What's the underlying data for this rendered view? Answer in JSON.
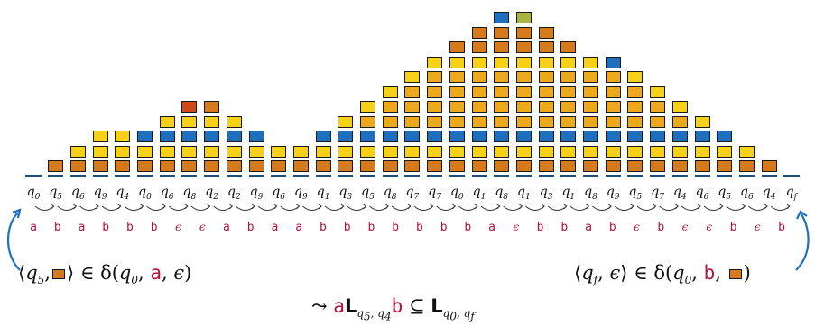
{
  "colors": {
    "Y": "#f7d117",
    "G": "#eca91c",
    "O": "#d67b1c",
    "B": "#1e6fbd",
    "R": "#cc4a1c",
    "L": "#a9b540",
    "axis": "#1f4e79",
    "text_red": "#b5123e"
  },
  "columns": [
    [],
    [
      "O"
    ],
    [
      "O",
      "Y"
    ],
    [
      "O",
      "Y",
      "Y"
    ],
    [
      "O",
      "Y",
      "Y"
    ],
    [
      "O",
      "Y",
      "B"
    ],
    [
      "O",
      "Y",
      "B",
      "Y"
    ],
    [
      "O",
      "Y",
      "B",
      "Y",
      "R"
    ],
    [
      "O",
      "Y",
      "B",
      "Y",
      "O"
    ],
    [
      "O",
      "Y",
      "B",
      "Y"
    ],
    [
      "O",
      "Y",
      "B"
    ],
    [
      "O",
      "Y"
    ],
    [
      "O",
      "Y"
    ],
    [
      "O",
      "Y",
      "B"
    ],
    [
      "O",
      "Y",
      "B",
      "Y"
    ],
    [
      "O",
      "Y",
      "B",
      "G",
      "Y"
    ],
    [
      "O",
      "Y",
      "B",
      "G",
      "G",
      "Y"
    ],
    [
      "O",
      "Y",
      "B",
      "G",
      "G",
      "G",
      "Y"
    ],
    [
      "O",
      "Y",
      "B",
      "G",
      "G",
      "G",
      "G",
      "Y"
    ],
    [
      "O",
      "Y",
      "B",
      "G",
      "G",
      "G",
      "G",
      "Y",
      "O"
    ],
    [
      "O",
      "Y",
      "B",
      "G",
      "G",
      "G",
      "G",
      "Y",
      "O",
      "O"
    ],
    [
      "O",
      "Y",
      "B",
      "G",
      "G",
      "G",
      "G",
      "Y",
      "O",
      "O",
      "B"
    ],
    [
      "O",
      "Y",
      "B",
      "G",
      "G",
      "G",
      "G",
      "Y",
      "O",
      "O",
      "L"
    ],
    [
      "O",
      "Y",
      "B",
      "G",
      "G",
      "G",
      "G",
      "Y",
      "O",
      "O"
    ],
    [
      "O",
      "Y",
      "B",
      "G",
      "G",
      "G",
      "G",
      "Y",
      "O"
    ],
    [
      "O",
      "Y",
      "B",
      "G",
      "G",
      "G",
      "G",
      "Y"
    ],
    [
      "O",
      "Y",
      "B",
      "G",
      "G",
      "G",
      "G",
      "B"
    ],
    [
      "O",
      "Y",
      "B",
      "G",
      "G",
      "G",
      "Y"
    ],
    [
      "O",
      "Y",
      "B",
      "G",
      "G",
      "Y"
    ],
    [
      "O",
      "Y",
      "B",
      "G",
      "Y"
    ],
    [
      "O",
      "Y",
      "B",
      "Y"
    ],
    [
      "O",
      "Y",
      "B"
    ],
    [
      "O",
      "Y"
    ],
    [
      "O"
    ],
    []
  ],
  "states": [
    {
      "b": "q",
      "s": "0"
    },
    {
      "b": "q",
      "s": "5"
    },
    {
      "b": "q",
      "s": "6"
    },
    {
      "b": "q",
      "s": "9"
    },
    {
      "b": "q",
      "s": "4"
    },
    {
      "b": "q",
      "s": "0"
    },
    {
      "b": "q",
      "s": "6"
    },
    {
      "b": "q",
      "s": "8"
    },
    {
      "b": "q",
      "s": "2"
    },
    {
      "b": "q",
      "s": "2"
    },
    {
      "b": "q",
      "s": "9"
    },
    {
      "b": "q",
      "s": "6"
    },
    {
      "b": "q",
      "s": "9"
    },
    {
      "b": "q",
      "s": "1"
    },
    {
      "b": "q",
      "s": "3"
    },
    {
      "b": "q",
      "s": "5"
    },
    {
      "b": "q",
      "s": "8"
    },
    {
      "b": "q",
      "s": "7"
    },
    {
      "b": "q",
      "s": "7"
    },
    {
      "b": "q",
      "s": "0"
    },
    {
      "b": "q",
      "s": "1"
    },
    {
      "b": "q",
      "s": "8"
    },
    {
      "b": "q",
      "s": "1"
    },
    {
      "b": "q",
      "s": "3"
    },
    {
      "b": "q",
      "s": "1"
    },
    {
      "b": "q",
      "s": "8"
    },
    {
      "b": "q",
      "s": "9"
    },
    {
      "b": "q",
      "s": "5"
    },
    {
      "b": "q",
      "s": "7"
    },
    {
      "b": "q",
      "s": "4"
    },
    {
      "b": "q",
      "s": "6"
    },
    {
      "b": "q",
      "s": "5"
    },
    {
      "b": "q",
      "s": "6"
    },
    {
      "b": "q",
      "s": "4"
    },
    {
      "b": "q",
      "s": "f"
    }
  ],
  "letters": [
    "a",
    "b",
    "a",
    "b",
    "b",
    "b",
    "ϵ",
    "ϵ",
    "a",
    "b",
    "a",
    "a",
    "b",
    "b",
    "b",
    "b",
    "b",
    "b",
    "b",
    "a",
    "ϵ",
    "b",
    "b",
    "a",
    "b",
    "ϵ",
    "b",
    "ϵ",
    "ϵ",
    "b",
    "ϵ",
    "b"
  ],
  "formula_left": {
    "open": "⟨",
    "q": "q",
    "qsub": "5",
    "comma": ",",
    "close": "⟩ ∈ δ(",
    "q0": "q",
    "q0sub": "0",
    ",": ", ",
    "letter": "a",
    ",2": ", ",
    "eps": "ϵ",
    ")": ")"
  },
  "formula_right": {
    "open": "⟨",
    "q": "q",
    "qsub": "f",
    "comma": ", ",
    "eps": "ϵ",
    "close": "⟩ ∈ δ(",
    "q0": "q",
    "q0sub": "0",
    ",": ", ",
    "letter": "b",
    ",2": ", ",
    ")": ")"
  },
  "formula_bottom": {
    "arrow": "⤳ ",
    "a": "a",
    "L1": "L",
    "L1sub": "q",
    "L1subsub": "5",
    "L1sep": ", ",
    "L1sub2": "q",
    "L1subsub2": "4",
    "b": "b",
    "subset": " ⊆ ",
    "L2": "L",
    "L2sub": "q",
    "L2subsub": "0",
    "L2sep": ", ",
    "L2sub2": "q",
    "L2subsub2": "f"
  }
}
